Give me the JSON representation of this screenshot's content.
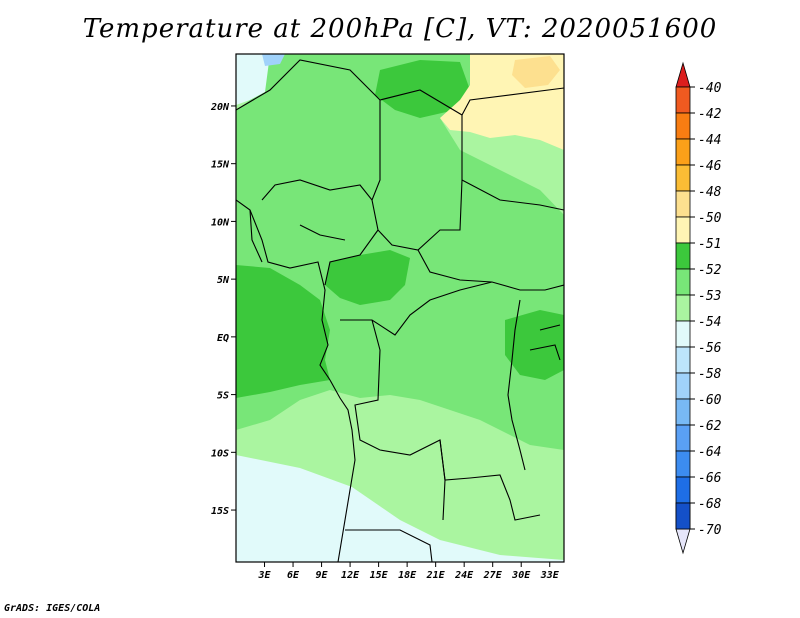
{
  "title": "Temperature at 200hPa [C], VT: 2020051600",
  "credit": "GrADS: IGES/COLA",
  "map": {
    "region": "Central Africa",
    "lat_labels": [
      "20N",
      "15N",
      "10N",
      "5N",
      "EQ",
      "5S",
      "10S",
      "15S"
    ],
    "lat_values": [
      20,
      15,
      10,
      5,
      0,
      -5,
      -10,
      -15
    ],
    "lon_labels": [
      "3E",
      "6E",
      "9E",
      "12E",
      "15E",
      "18E",
      "21E",
      "24E",
      "27E",
      "30E",
      "33E"
    ],
    "lon_values": [
      3,
      6,
      9,
      12,
      15,
      18,
      21,
      24,
      27,
      30,
      33
    ],
    "lat_range": [
      -19.5,
      24.5
    ],
    "lon_range": [
      0,
      34.5
    ]
  },
  "colorbar": {
    "labels": [
      "-40",
      "-42",
      "-44",
      "-46",
      "-48",
      "-50",
      "-51",
      "-52",
      "-53",
      "-54",
      "-56",
      "-58",
      "-60",
      "-62",
      "-64",
      "-66",
      "-68",
      "-70"
    ],
    "colors": [
      "#f05a20",
      "#f87d12",
      "#fba019",
      "#fbbd35",
      "#fde08f",
      "#fff5b4",
      "#3cc83c",
      "#78e678",
      "#aaf5a0",
      "#e1fafa",
      "#bde5fb",
      "#a0d2fa",
      "#78b9f5",
      "#5aa0f5",
      "#3c8cf0",
      "#1e6ee6",
      "#1450c8",
      "#0a1e78"
    ],
    "top_color": "#dc1e1e",
    "bottom_color": "#e6e6fa"
  },
  "fields": {
    "yellow": "#fff5b4",
    "pale_yellow": "#fde08f",
    "dark_green": "#3cc83c",
    "green": "#78e678",
    "light_green": "#aaf5a0",
    "cyan": "#e1fafa",
    "light_blue": "#a0d2fa"
  }
}
